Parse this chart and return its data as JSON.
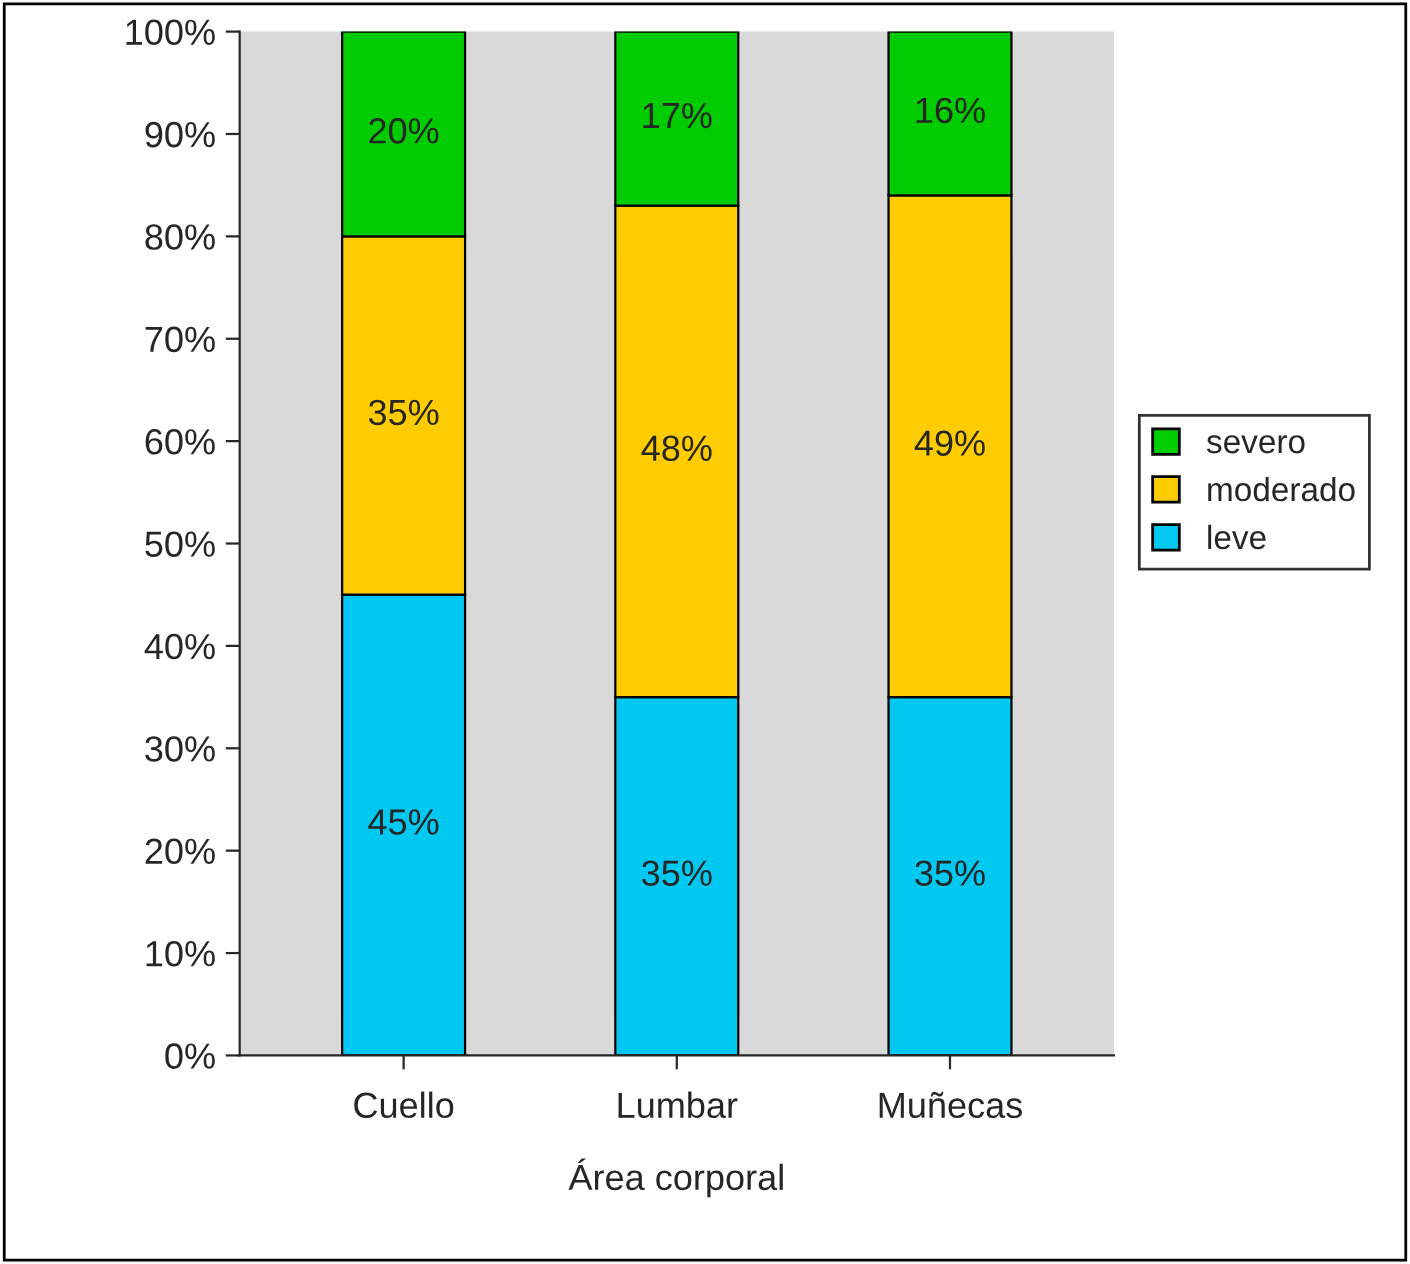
{
  "chart_data": {
    "type": "bar",
    "stacked": true,
    "xlabel": "Área corporal",
    "categories": [
      "Cuello",
      "Lumbar",
      "Muñecas"
    ],
    "series": [
      {
        "name": "leve",
        "color": "#00c8f0",
        "values": [
          45,
          35,
          35
        ],
        "value_labels": [
          "45%",
          "35%",
          "35%"
        ]
      },
      {
        "name": "moderado",
        "color": "#ffcc00",
        "values": [
          35,
          48,
          49
        ],
        "value_labels": [
          "35%",
          "48%",
          "49%"
        ]
      },
      {
        "name": "severo",
        "color": "#00cc00",
        "values": [
          20,
          17,
          16
        ],
        "value_labels": [
          "20%",
          "17%",
          "16%"
        ]
      }
    ],
    "ylim": [
      0,
      100
    ],
    "yticks": [
      {
        "value": 0,
        "label": "0%"
      },
      {
        "value": 10,
        "label": "10%"
      },
      {
        "value": 20,
        "label": "20%"
      },
      {
        "value": 30,
        "label": "30%"
      },
      {
        "value": 40,
        "label": "40%"
      },
      {
        "value": 50,
        "label": "50%"
      },
      {
        "value": 60,
        "label": "60%"
      },
      {
        "value": 70,
        "label": "70%"
      },
      {
        "value": 80,
        "label": "80%"
      },
      {
        "value": 90,
        "label": "90%"
      },
      {
        "value": 100,
        "label": "100%"
      }
    ],
    "grid": false,
    "legend": "right"
  }
}
